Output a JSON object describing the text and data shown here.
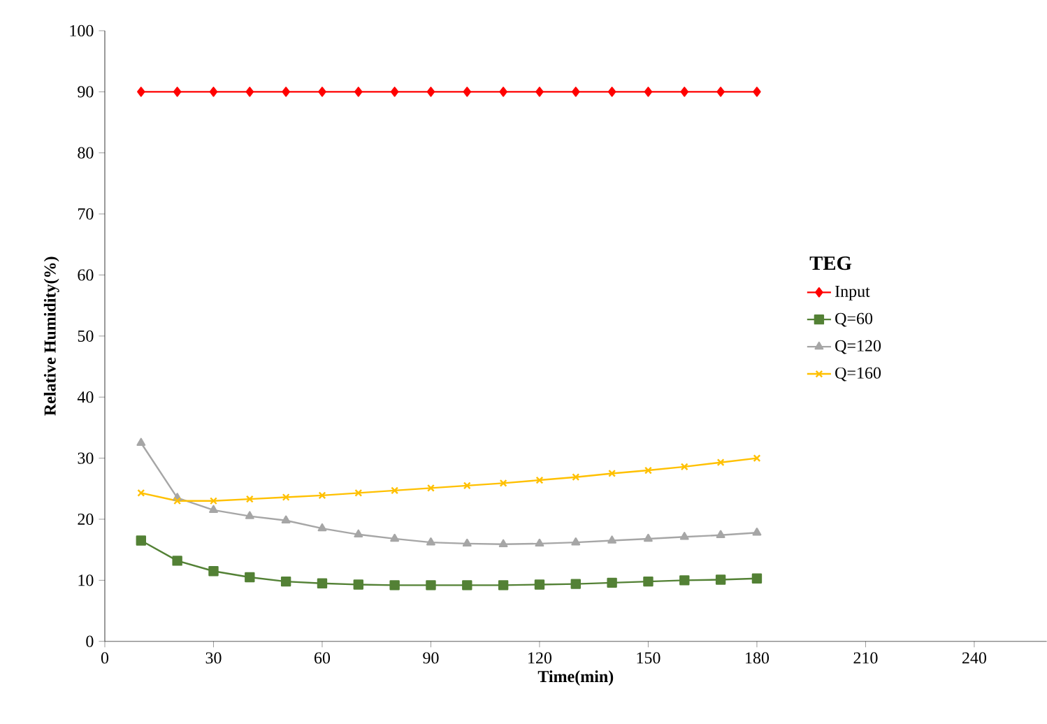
{
  "chart_data": {
    "type": "line",
    "xlabel": "Time(min)",
    "ylabel": "Relative Humidity(%)",
    "legend_title": "TEG",
    "legend": "right",
    "x": [
      10,
      20,
      30,
      40,
      50,
      60,
      70,
      80,
      90,
      100,
      110,
      120,
      130,
      140,
      150,
      160,
      170,
      180
    ],
    "xlim": [
      0,
      260
    ],
    "xticks": [
      0,
      30,
      60,
      90,
      120,
      150,
      180,
      210,
      240
    ],
    "ylim": [
      0,
      100
    ],
    "yticks": [
      0,
      10,
      20,
      30,
      40,
      50,
      60,
      70,
      80,
      90,
      100
    ],
    "series": [
      {
        "name": "Input",
        "color": "#ff0000",
        "marker": "diamond",
        "values": [
          90,
          90,
          90,
          90,
          90,
          90,
          90,
          90,
          90,
          90,
          90,
          90,
          90,
          90,
          90,
          90,
          90,
          90
        ]
      },
      {
        "name": "Q=60",
        "color": "#538135",
        "marker": "square",
        "values": [
          16.5,
          13.2,
          11.5,
          10.5,
          9.8,
          9.5,
          9.3,
          9.2,
          9.2,
          9.2,
          9.2,
          9.3,
          9.4,
          9.6,
          9.8,
          10.0,
          10.1,
          10.3
        ]
      },
      {
        "name": "Q=120",
        "color": "#a6a6a6",
        "marker": "triangle",
        "values": [
          32.5,
          23.5,
          21.5,
          20.5,
          19.8,
          18.5,
          17.5,
          16.8,
          16.2,
          16.0,
          15.9,
          16.0,
          16.2,
          16.5,
          16.8,
          17.1,
          17.4,
          17.8
        ]
      },
      {
        "name": "Q=160",
        "color": "#ffc000",
        "marker": "cross",
        "values": [
          24.3,
          23.0,
          23.0,
          23.3,
          23.6,
          23.9,
          24.3,
          24.7,
          25.1,
          25.5,
          25.9,
          26.4,
          26.9,
          27.5,
          28.0,
          28.6,
          29.3,
          30.0
        ]
      }
    ]
  }
}
